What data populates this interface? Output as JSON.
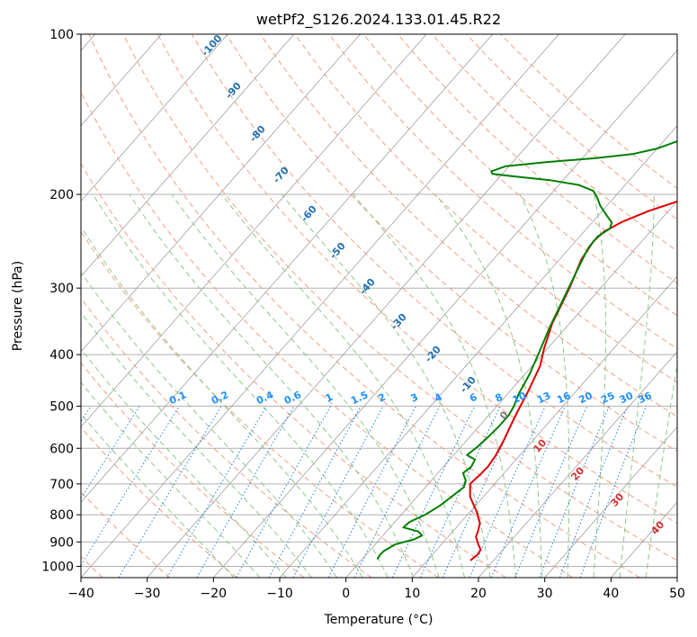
{
  "chart_data": {
    "type": "line",
    "title": "wetPf2_S126.2024.133.01.45.R22",
    "xlabel": "Temperature (°C)",
    "ylabel": "Pressure (hPa)",
    "xlim": [
      -40,
      50
    ],
    "ylim_pressure": [
      1050,
      100
    ],
    "y_scale": "log",
    "grid": true,
    "x_ticks": [
      "−40",
      "−30",
      "−20",
      "−10",
      "0",
      "10",
      "20",
      "30",
      "40",
      "50"
    ],
    "y_ticks": [
      {
        "p": 100,
        "label": "100"
      },
      {
        "p": 200,
        "label": "200"
      },
      {
        "p": 300,
        "label": "300"
      },
      {
        "p": 400,
        "label": "400"
      },
      {
        "p": 500,
        "label": "500"
      },
      {
        "p": 600,
        "label": "600"
      },
      {
        "p": 700,
        "label": "700"
      },
      {
        "p": 800,
        "label": "800"
      },
      {
        "p": 900,
        "label": "900"
      },
      {
        "p": 1000,
        "label": "1000"
      }
    ],
    "series": [
      {
        "color": "#e30000",
        "points": [
          [
            16.5,
            975
          ],
          [
            16.8,
            950
          ],
          [
            16.6,
            930
          ],
          [
            15.6,
            910
          ],
          [
            14.2,
            880
          ],
          [
            13.8,
            860
          ],
          [
            13.0,
            830
          ],
          [
            11.0,
            790
          ],
          [
            8.0,
            740
          ],
          [
            6.3,
            700
          ],
          [
            6.6,
            670
          ],
          [
            6.7,
            650
          ],
          [
            6.4,
            620
          ],
          [
            5.6,
            580
          ],
          [
            4.7,
            545
          ],
          [
            3.8,
            510
          ],
          [
            2.8,
            470
          ],
          [
            1.2,
            420
          ],
          [
            -0.5,
            390
          ],
          [
            -2.6,
            350
          ],
          [
            -4.7,
            300
          ],
          [
            -6.7,
            265
          ],
          [
            -7.3,
            245
          ],
          [
            -7.0,
            235
          ],
          [
            -5.5,
            225
          ],
          [
            -3.0,
            215
          ],
          [
            0.5,
            205
          ],
          [
            3.0,
            197
          ],
          [
            6.0,
            189
          ],
          [
            9.0,
            181
          ],
          [
            11.5,
            174
          ],
          [
            13.5,
            167
          ],
          [
            15.0,
            158
          ],
          [
            16.5,
            148
          ],
          [
            19.0,
            137
          ],
          [
            21.5,
            129
          ],
          [
            25.0,
            120
          ],
          [
            28.0,
            112
          ],
          [
            30.0,
            106
          ],
          [
            31.0,
            102
          ],
          [
            32.0,
            98
          ]
        ]
      },
      {
        "color": "#007f00",
        "points": [
          [
            2.3,
            970
          ],
          [
            2.1,
            950
          ],
          [
            2.2,
            935
          ],
          [
            3.0,
            910
          ],
          [
            5.2,
            890
          ],
          [
            5.9,
            875
          ],
          [
            4.8,
            860
          ],
          [
            2.0,
            845
          ],
          [
            2.2,
            825
          ],
          [
            3.6,
            800
          ],
          [
            4.6,
            770
          ],
          [
            5.8,
            710
          ],
          [
            5.2,
            690
          ],
          [
            3.8,
            668
          ],
          [
            4.2,
            650
          ],
          [
            3.8,
            630
          ],
          [
            2.0,
            618
          ],
          [
            2.5,
            595
          ],
          [
            2.8,
            570
          ],
          [
            3.0,
            545
          ],
          [
            3.0,
            520
          ],
          [
            2.6,
            500
          ],
          [
            1.7,
            475
          ],
          [
            0.7,
            435
          ],
          [
            -0.8,
            395
          ],
          [
            -2.5,
            355
          ],
          [
            -4.6,
            305
          ],
          [
            -6.3,
            270
          ],
          [
            -7.2,
            252
          ],
          [
            -7.3,
            240
          ],
          [
            -6.5,
            232
          ],
          [
            -7.0,
            226
          ],
          [
            -9.0,
            218
          ],
          [
            -11.0,
            210
          ],
          [
            -12.5,
            203
          ],
          [
            -14.0,
            197
          ],
          [
            -17.0,
            192
          ],
          [
            -22.0,
            188
          ],
          [
            -28.0,
            185
          ],
          [
            -31.5,
            183
          ],
          [
            -32.0,
            181
          ],
          [
            -30.5,
            177
          ],
          [
            -25.0,
            174
          ],
          [
            -18.0,
            171
          ],
          [
            -13.0,
            168
          ],
          [
            -10.0,
            164
          ],
          [
            -7.5,
            158
          ],
          [
            -5.0,
            150
          ],
          [
            -3.8,
            140
          ],
          [
            -3.6,
            132
          ],
          [
            -4.5,
            126
          ],
          [
            -6.0,
            122
          ],
          [
            -6.3,
            118
          ],
          [
            -5.0,
            113
          ],
          [
            -2.0,
            106
          ],
          [
            0.5,
            101
          ],
          [
            1.0,
            99
          ]
        ]
      }
    ],
    "dry_adiabat_labels": [
      "-100",
      "-90",
      "-80",
      "-70",
      "-60",
      "-50",
      "-40",
      "-30",
      "-20",
      "-10"
    ],
    "moist_adiabat_labels": [
      "0",
      "10",
      "20",
      "30",
      "40"
    ],
    "mixing_ratio_labels": [
      "0.1",
      "0.2",
      "0.4",
      "0.6",
      "1",
      "1.5",
      "2",
      "3",
      "4",
      "6",
      "8",
      "10",
      "13",
      "16",
      "20",
      "25",
      "30",
      "36"
    ],
    "colors": {
      "temperature": "#e30000",
      "dewpoint": "#007f00",
      "dry_adiabat": "#f0a080",
      "moist_adiabat": "#8cc88c",
      "mixing_ratio": "#1f7fe0",
      "isotherm": "#808080",
      "dry_label": "#1f6fb0",
      "moist_label": "#d03030",
      "mixing_label": "#1e90ff"
    }
  }
}
